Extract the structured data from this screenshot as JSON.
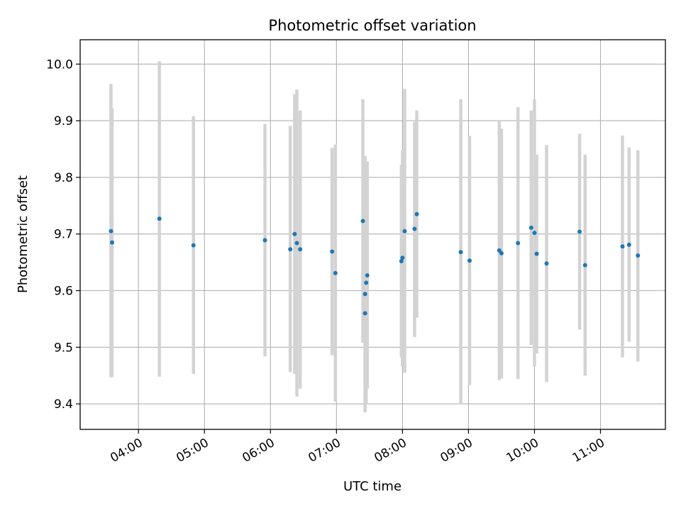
{
  "chart_data": {
    "type": "scatter",
    "title": "Photometric offset variation",
    "xlabel": "UTC time",
    "ylabel": "Photometric offset",
    "x_axis_kind": "time",
    "x_tick_labels": [
      "04:00",
      "05:00",
      "06:00",
      "07:00",
      "08:00",
      "09:00",
      "10:00",
      "11:00"
    ],
    "y_ticks": [
      9.4,
      9.5,
      9.6,
      9.7,
      9.8,
      9.9,
      10.0
    ],
    "y_tick_labels": [
      "9.4",
      "9.5",
      "9.6",
      "9.7",
      "9.8",
      "9.9",
      "10.0"
    ],
    "xlim": [
      "03:07",
      "11:59"
    ],
    "ylim": [
      9.355,
      10.043
    ],
    "grid": true,
    "colors": {
      "point": "#1f77b4",
      "errorbar": "#d3d3d3",
      "grid": "#b0b0b0"
    },
    "points": [
      {
        "x": "03:35",
        "y": 9.705,
        "yerr_low": 9.447,
        "yerr_high": 9.965
      },
      {
        "x": "03:36",
        "y": 9.685,
        "yerr_low": 9.447,
        "yerr_high": 9.922
      },
      {
        "x": "04:19",
        "y": 9.727,
        "yerr_low": 9.448,
        "yerr_high": 10.005
      },
      {
        "x": "04:50",
        "y": 9.68,
        "yerr_low": 9.453,
        "yerr_high": 9.908
      },
      {
        "x": "05:55",
        "y": 9.689,
        "yerr_low": 9.484,
        "yerr_high": 9.894
      },
      {
        "x": "06:18",
        "y": 9.673,
        "yerr_low": 9.456,
        "yerr_high": 9.891
      },
      {
        "x": "06:22",
        "y": 9.7,
        "yerr_low": 9.453,
        "yerr_high": 9.947
      },
      {
        "x": "06:24",
        "y": 9.684,
        "yerr_low": 9.413,
        "yerr_high": 9.955
      },
      {
        "x": "06:27",
        "y": 9.673,
        "yerr_low": 9.427,
        "yerr_high": 9.918
      },
      {
        "x": "06:56",
        "y": 9.669,
        "yerr_low": 9.486,
        "yerr_high": 9.852
      },
      {
        "x": "06:59",
        "y": 9.631,
        "yerr_low": 9.404,
        "yerr_high": 9.858
      },
      {
        "x": "07:24",
        "y": 9.723,
        "yerr_low": 9.508,
        "yerr_high": 9.938
      },
      {
        "x": "07:26",
        "y": 9.594,
        "yerr_low": 9.385,
        "yerr_high": 9.838
      },
      {
        "x": "07:26",
        "y": 9.56,
        "yerr_low": 9.392,
        "yerr_high": 9.73
      },
      {
        "x": "07:27",
        "y": 9.614,
        "yerr_low": 9.4,
        "yerr_high": 9.828
      },
      {
        "x": "07:28",
        "y": 9.627,
        "yerr_low": 9.427,
        "yerr_high": 9.828
      },
      {
        "x": "07:59",
        "y": 9.652,
        "yerr_low": 9.482,
        "yerr_high": 9.822
      },
      {
        "x": "08:00",
        "y": 9.658,
        "yerr_low": 9.466,
        "yerr_high": 9.848
      },
      {
        "x": "08:02",
        "y": 9.705,
        "yerr_low": 9.455,
        "yerr_high": 9.956
      },
      {
        "x": "08:11",
        "y": 9.709,
        "yerr_low": 9.518,
        "yerr_high": 9.898
      },
      {
        "x": "08:13",
        "y": 9.735,
        "yerr_low": 9.552,
        "yerr_high": 9.918
      },
      {
        "x": "08:53",
        "y": 9.668,
        "yerr_low": 9.4,
        "yerr_high": 9.938
      },
      {
        "x": "09:01",
        "y": 9.653,
        "yerr_low": 9.433,
        "yerr_high": 9.873
      },
      {
        "x": "09:28",
        "y": 9.671,
        "yerr_low": 9.442,
        "yerr_high": 9.9
      },
      {
        "x": "09:30",
        "y": 9.666,
        "yerr_low": 9.445,
        "yerr_high": 9.886
      },
      {
        "x": "09:45",
        "y": 9.684,
        "yerr_low": 9.444,
        "yerr_high": 9.924
      },
      {
        "x": "09:57",
        "y": 9.711,
        "yerr_low": 9.504,
        "yerr_high": 9.918
      },
      {
        "x": "10:00",
        "y": 9.702,
        "yerr_low": 9.466,
        "yerr_high": 9.938
      },
      {
        "x": "10:02",
        "y": 9.665,
        "yerr_low": 9.489,
        "yerr_high": 9.84
      },
      {
        "x": "10:11",
        "y": 9.648,
        "yerr_low": 9.439,
        "yerr_high": 9.857
      },
      {
        "x": "10:41",
        "y": 9.704,
        "yerr_low": 9.531,
        "yerr_high": 9.877
      },
      {
        "x": "10:46",
        "y": 9.645,
        "yerr_low": 9.45,
        "yerr_high": 9.84
      },
      {
        "x": "11:20",
        "y": 9.678,
        "yerr_low": 9.482,
        "yerr_high": 9.874
      },
      {
        "x": "11:26",
        "y": 9.681,
        "yerr_low": 9.51,
        "yerr_high": 9.853
      },
      {
        "x": "11:34",
        "y": 9.662,
        "yerr_low": 9.475,
        "yerr_high": 9.848
      }
    ]
  }
}
